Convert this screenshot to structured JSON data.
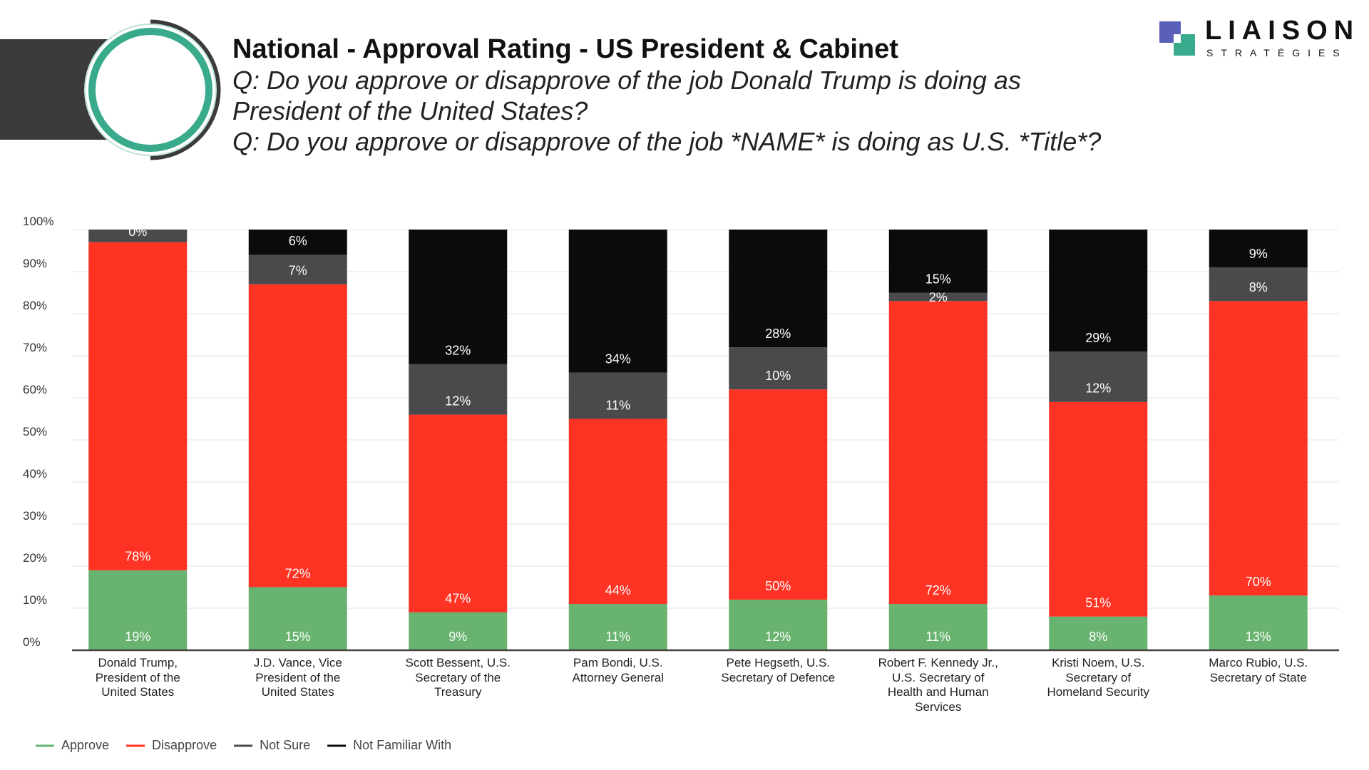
{
  "header": {
    "title": "National - Approval Rating - US President & Cabinet",
    "subtitle_lines": [
      "Q: Do you approve or disapprove of the job Donald Trump is doing as",
      "President of the United States?",
      "Q: Do you approve or disapprove of the job *NAME* is doing as U.S. *Title*?"
    ]
  },
  "logo": {
    "name": "LIAISON",
    "tagline": "STRATÉGIES"
  },
  "chart_data": {
    "type": "stacked-bar",
    "categories": [
      "Donald Trump, President of the United States",
      "J.D. Vance, Vice President of the United States",
      "Scott Bessent, U.S. Secretary of the Treasury",
      "Pam Bondi, U.S. Attorney General",
      "Pete Hegseth, U.S. Secretary of Defence",
      "Robert F. Kennedy Jr., U.S. Secretary of Health and Human Services",
      "Kristi Noem, U.S. Secretary of Homeland Security",
      "Marco Rubio, U.S. Secretary of State"
    ],
    "series": [
      {
        "name": "Approve",
        "color": "#67b36f",
        "values": [
          19,
          15,
          9,
          11,
          12,
          11,
          8,
          13
        ],
        "value_labels": [
          "19%",
          "15%",
          "9%",
          "11%",
          "12%",
          "11%",
          "8%",
          "13%"
        ]
      },
      {
        "name": "Disapprove",
        "color": "#ff3324",
        "values": [
          78,
          72,
          47,
          44,
          50,
          72,
          51,
          70
        ],
        "value_labels": [
          "78%",
          "72%",
          "47%",
          "44%",
          "50%",
          "72%",
          "51%",
          "70%"
        ]
      },
      {
        "name": "Not Sure",
        "color": "#4a4a4d",
        "values": [
          3,
          7,
          12,
          11,
          10,
          2,
          12,
          8
        ],
        "value_labels": [
          null,
          "7%",
          "12%",
          "11%",
          "10%",
          "2%",
          "12%",
          "8%"
        ]
      },
      {
        "name": "Not Familiar With",
        "color": "#0b0b0e",
        "values": [
          0,
          6,
          32,
          34,
          28,
          15,
          29,
          9
        ],
        "value_labels": [
          "0%",
          "6%",
          "32%",
          "34%",
          "28%",
          "15%",
          "29%",
          "9%"
        ]
      }
    ],
    "ylim": [
      0,
      100
    ],
    "yticks": [
      {
        "value": 0,
        "label": "0%"
      },
      {
        "value": 10,
        "label": "10%"
      },
      {
        "value": 20,
        "label": "20%"
      },
      {
        "value": 30,
        "label": "30%"
      },
      {
        "value": 40,
        "label": "40%"
      },
      {
        "value": 50,
        "label": "50%"
      },
      {
        "value": 60,
        "label": "60%"
      },
      {
        "value": 70,
        "label": "70%"
      },
      {
        "value": 80,
        "label": "80%"
      },
      {
        "value": 90,
        "label": "90%"
      },
      {
        "value": 100,
        "label": "100%"
      }
    ],
    "grid": true,
    "legend": "bottom-left"
  }
}
